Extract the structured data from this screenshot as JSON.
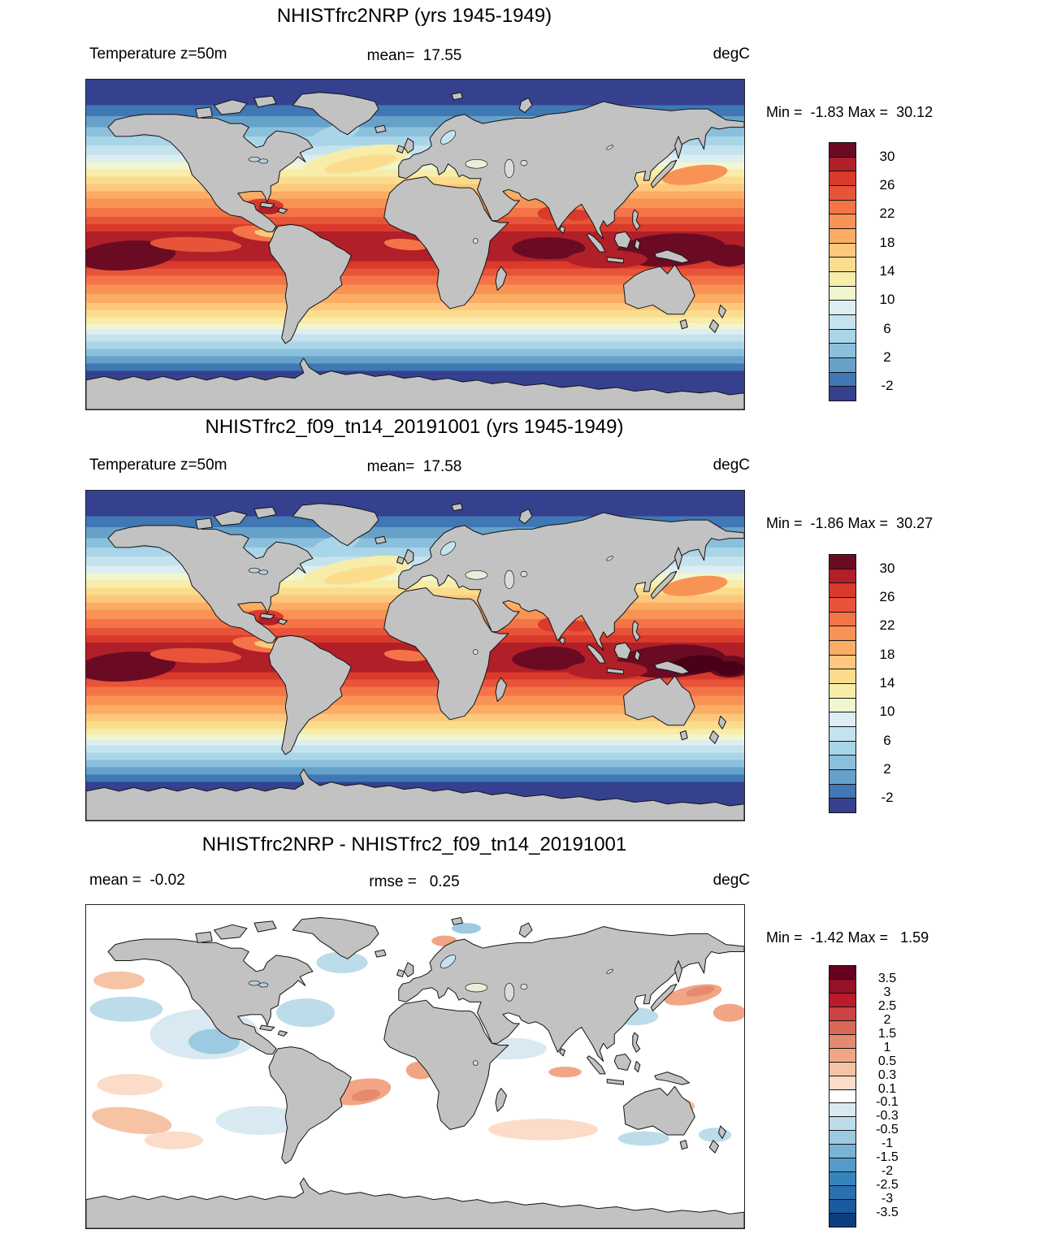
{
  "figure": {
    "background": "#ffffff",
    "land_color": "#c2c2c2",
    "coast_color": "#141414",
    "units": "degC"
  },
  "panels": [
    {
      "id": "model-a",
      "title": "NHISTfrc2NRP (yrs 1945-1949)",
      "left_label": "Temperature z=50m",
      "center_label": "mean=  17.55",
      "units": "degC",
      "stats_line": "Min =  -1.83 Max =  30.12",
      "colorbar": {
        "colors": [
          "#6a0b23",
          "#b11f28",
          "#d93a2b",
          "#e75439",
          "#f47448",
          "#f99355",
          "#fbad64",
          "#fdc87d",
          "#fbdc8d",
          "#f8eca9",
          "#f0f6cd",
          "#dceef1",
          "#c5e3ee",
          "#a9d5e8",
          "#8bc0dc",
          "#66a1ca",
          "#3f78b4",
          "#35418f"
        ],
        "tick_labels": [
          "30",
          "26",
          "22",
          "18",
          "14",
          "10",
          "6",
          "2",
          "-2"
        ],
        "tick_start": 1,
        "tick_step": 2
      }
    },
    {
      "id": "model-b",
      "title": "NHISTfrc2_f09_tn14_20191001 (yrs 1945-1949)",
      "left_label": "Temperature z=50m",
      "center_label": "mean=  17.58",
      "units": "degC",
      "stats_line": "Min =  -1.86 Max =  30.27",
      "colorbar": {
        "colors": [
          "#6a0b23",
          "#b11f28",
          "#d93a2b",
          "#e75439",
          "#f47448",
          "#f99355",
          "#fbad64",
          "#fdc87d",
          "#fbdc8d",
          "#f8eca9",
          "#f0f6cd",
          "#dceef1",
          "#c5e3ee",
          "#a9d5e8",
          "#8bc0dc",
          "#66a1ca",
          "#3f78b4",
          "#35418f"
        ],
        "tick_labels": [
          "30",
          "26",
          "22",
          "18",
          "14",
          "10",
          "6",
          "2",
          "-2"
        ],
        "tick_start": 1,
        "tick_step": 2
      }
    },
    {
      "id": "difference",
      "title": "NHISTfrc2NRP - NHISTfrc2_f09_tn14_20191001",
      "left_label": "mean =  -0.02",
      "center_label": "rmse =   0.25",
      "units": "degC",
      "stats_line": "Min =  -1.42 Max =   1.59",
      "colorbar": {
        "colors": [
          "#67001f",
          "#951126",
          "#bb1b2a",
          "#cc4345",
          "#d96856",
          "#e58a6e",
          "#f2a585",
          "#f7c3a5",
          "#fadcc8",
          "#ffffff",
          "#d9e9f1",
          "#bcdcea",
          "#9ccae1",
          "#77b3d5",
          "#549bc7",
          "#3585bc",
          "#2a70ae",
          "#1a5a9e",
          "#0c3d7e"
        ],
        "tick_labels": [
          "3.5",
          "3",
          "2.5",
          "2",
          "1.5",
          "1",
          "0.5",
          "0.3",
          "0.1",
          "-0.1",
          "-0.3",
          "-0.5",
          "-1",
          "-1.5",
          "-2",
          "-2.5",
          "-3",
          "-3.5"
        ],
        "tick_start": 1,
        "tick_step": 1
      }
    }
  ],
  "chart_data": {
    "type": "heatmap",
    "projection": "equirectangular world map, lon -180..180 (x), lat 90..-90 (y)",
    "variable": "Temperature z=50m",
    "units": "degC",
    "panels": [
      {
        "name": "NHISTfrc2NRP",
        "period_years": "1945-1949",
        "mean": 17.55,
        "min": -1.83,
        "max": 30.12,
        "contour_levels": [
          -2,
          0,
          2,
          4,
          6,
          8,
          10,
          12,
          14,
          16,
          18,
          20,
          22,
          24,
          26,
          28,
          30
        ]
      },
      {
        "name": "NHISTfrc2_f09_tn14_20191001",
        "period_years": "1945-1949",
        "mean": 17.58,
        "min": -1.86,
        "max": 30.27,
        "contour_levels": [
          -2,
          0,
          2,
          4,
          6,
          8,
          10,
          12,
          14,
          16,
          18,
          20,
          22,
          24,
          26,
          28,
          30
        ]
      },
      {
        "name": "NHISTfrc2NRP - NHISTfrc2_f09_tn14_20191001",
        "statistic": "difference",
        "mean": -0.02,
        "rmse": 0.25,
        "min": -1.42,
        "max": 1.59,
        "contour_levels": [
          -3.5,
          -3,
          -2.5,
          -2,
          -1.5,
          -1,
          -0.5,
          -0.3,
          -0.1,
          0.1,
          0.3,
          0.5,
          1,
          1.5,
          2,
          2.5,
          3,
          3.5
        ]
      }
    ],
    "zonal_bands": [
      [
        14,
        17
      ],
      [
        20,
        16
      ],
      [
        26,
        15
      ],
      [
        31,
        14
      ],
      [
        36,
        13
      ],
      [
        41,
        12
      ],
      [
        45,
        11
      ],
      [
        49,
        10
      ],
      [
        53,
        9
      ],
      [
        57,
        8
      ],
      [
        61,
        7
      ],
      [
        65,
        6
      ],
      [
        70,
        5
      ],
      [
        75,
        4
      ],
      [
        79,
        3
      ],
      [
        83,
        2
      ],
      [
        99,
        1
      ],
      [
        103,
        2
      ],
      [
        107,
        3
      ],
      [
        112,
        4
      ],
      [
        117,
        5
      ],
      [
        122,
        6
      ],
      [
        126,
        7
      ],
      [
        130,
        8
      ],
      [
        133,
        9
      ],
      [
        136,
        10
      ],
      [
        139,
        11
      ],
      [
        143,
        12
      ],
      [
        147,
        13
      ],
      [
        151,
        14
      ],
      [
        155,
        15
      ],
      [
        159,
        16
      ],
      [
        180,
        17
      ]
    ],
    "sst_features": [
      [
        22,
        96,
        27,
        8,
        -4,
        0
      ],
      [
        320,
        93,
        30,
        9,
        -3,
        0
      ],
      [
        352,
        96,
        12,
        6,
        0,
        0
      ],
      [
        253,
        92,
        20,
        6,
        0,
        0
      ],
      [
        285,
        98,
        22,
        5,
        0,
        1
      ],
      [
        60,
        90,
        25,
        4,
        2,
        3
      ],
      [
        96,
        84,
        16,
        4,
        6,
        4
      ],
      [
        100,
        84,
        8,
        2,
        6,
        7
      ],
      [
        175,
        90,
        12,
        3,
        5,
        4
      ],
      [
        148,
        44,
        30,
        7,
        -10,
        9
      ],
      [
        150,
        46,
        20,
        4,
        -10,
        8
      ],
      [
        136,
        30,
        14,
        5,
        -18,
        13
      ],
      [
        333,
        52,
        18,
        5,
        -8,
        5
      ],
      [
        97,
        69,
        11,
        4,
        0,
        2
      ],
      [
        100,
        71,
        6,
        2.5,
        0,
        1
      ],
      [
        256,
        73,
        9,
        4,
        0,
        2
      ],
      [
        269,
        74,
        7,
        3,
        0,
        2
      ]
    ],
    "sst_features_panel2_extra": [
      [
        334,
        95,
        15,
        5,
        -5,
        "#4a0018"
      ],
      [
        352,
        97,
        8,
        4,
        0,
        "#4a0018"
      ],
      [
        255,
        90,
        16,
        5,
        0,
        0
      ]
    ],
    "diff_features": [
      [
        65,
        72,
        30,
        14,
        0,
        10
      ],
      [
        70,
        76,
        14,
        7,
        0,
        12
      ],
      [
        22,
        58,
        20,
        7,
        0,
        11
      ],
      [
        18,
        42,
        14,
        5,
        0,
        7
      ],
      [
        24,
        100,
        18,
        6,
        0,
        8
      ],
      [
        25,
        120,
        22,
        7,
        8,
        7
      ],
      [
        48,
        131,
        16,
        5,
        0,
        8
      ],
      [
        95,
        120,
        24,
        8,
        0,
        10
      ],
      [
        140,
        32,
        14,
        6,
        0,
        11
      ],
      [
        120,
        60,
        16,
        8,
        0,
        11
      ],
      [
        150,
        104,
        17,
        7,
        -10,
        6
      ],
      [
        153,
        106,
        8,
        3,
        -10,
        5
      ],
      [
        183,
        92,
        8,
        5,
        0,
        6
      ],
      [
        196,
        20,
        7,
        3,
        0,
        6
      ],
      [
        208,
        13,
        8,
        3,
        0,
        12
      ],
      [
        332,
        50,
        16,
        5,
        -12,
        6
      ],
      [
        336,
        48,
        8,
        2.5,
        -12,
        5
      ],
      [
        352,
        60,
        9,
        5,
        0,
        6
      ],
      [
        300,
        62,
        13,
        5,
        0,
        11
      ],
      [
        262,
        93,
        9,
        3,
        0,
        6
      ],
      [
        232,
        80,
        20,
        6,
        0,
        10
      ],
      [
        320,
        112,
        13,
        5,
        0,
        7
      ],
      [
        344,
        128,
        9,
        4,
        0,
        11
      ],
      [
        180,
        62,
        14,
        5,
        0,
        8
      ],
      [
        213,
        46,
        4,
        1.5,
        0,
        5
      ],
      [
        250,
        125,
        30,
        6,
        0,
        8
      ],
      [
        305,
        130,
        14,
        4,
        0,
        11
      ]
    ]
  }
}
